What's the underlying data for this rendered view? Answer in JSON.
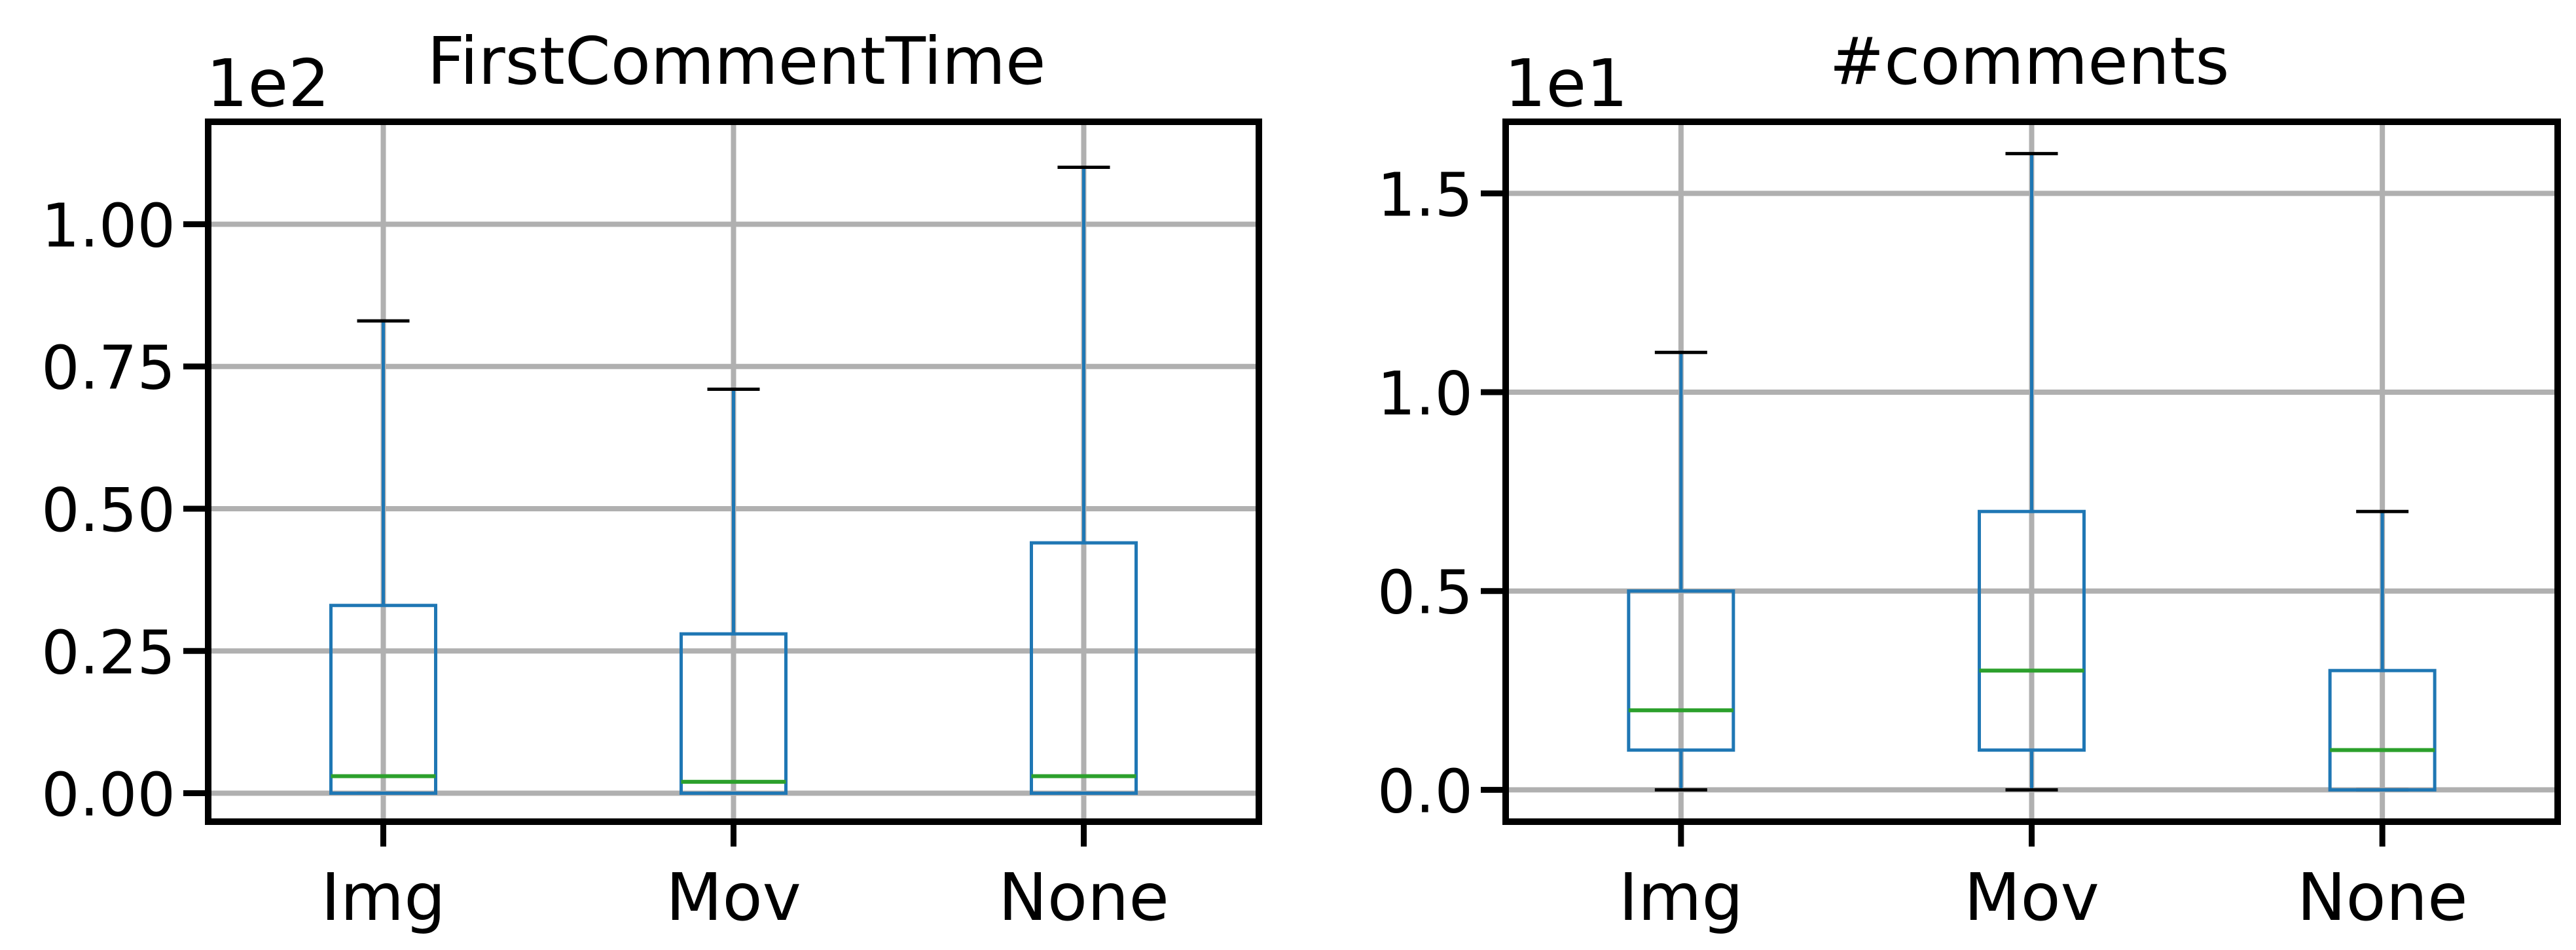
{
  "chart_data": [
    {
      "type": "box",
      "title": "FirstCommentTime",
      "offset_label": "1e2",
      "categories": [
        "Img",
        "Mov",
        "None"
      ],
      "ylim": [
        -0.05,
        1.18
      ],
      "yticks": [
        0.0,
        0.25,
        0.5,
        0.75,
        1.0
      ],
      "ytick_labels": [
        "0.00",
        "0.25",
        "0.50",
        "0.75",
        "1.00"
      ],
      "grid": true,
      "boxes": [
        {
          "category": "Img",
          "whisker_low": 0.0,
          "q1": 0.0,
          "median": 0.03,
          "q3": 0.33,
          "whisker_high": 0.83
        },
        {
          "category": "Mov",
          "whisker_low": 0.0,
          "q1": 0.0,
          "median": 0.02,
          "q3": 0.28,
          "whisker_high": 0.71
        },
        {
          "category": "None",
          "whisker_low": 0.0,
          "q1": 0.0,
          "median": 0.03,
          "q3": 0.44,
          "whisker_high": 1.1
        }
      ]
    },
    {
      "type": "box",
      "title": "#comments",
      "offset_label": "1e1",
      "categories": [
        "Img",
        "Mov",
        "None"
      ],
      "ylim": [
        -0.08,
        1.68
      ],
      "yticks": [
        0.0,
        0.5,
        1.0,
        1.5
      ],
      "ytick_labels": [
        "0.0",
        "0.5",
        "1.0",
        "1.5"
      ],
      "grid": true,
      "boxes": [
        {
          "category": "Img",
          "whisker_low": 0.0,
          "q1": 0.1,
          "median": 0.2,
          "q3": 0.5,
          "whisker_high": 1.1
        },
        {
          "category": "Mov",
          "whisker_low": 0.0,
          "q1": 0.1,
          "median": 0.3,
          "q3": 0.7,
          "whisker_high": 1.6
        },
        {
          "category": "None",
          "whisker_low": 0.0,
          "q1": 0.0,
          "median": 0.1,
          "q3": 0.3,
          "whisker_high": 0.7
        }
      ]
    }
  ],
  "colors": {
    "box": "#1f77b4",
    "median": "#2ca02c",
    "cap": "#000000",
    "grid": "#b0b0b0",
    "axes": "#000000"
  }
}
